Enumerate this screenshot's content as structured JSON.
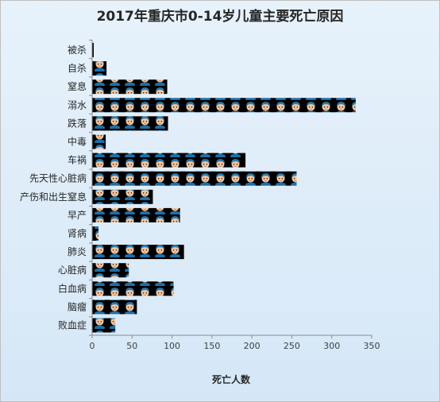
{
  "chart_data": {
    "type": "bar",
    "orientation": "horizontal",
    "title": "2017年重庆市0-14岁儿童主要死亡原因",
    "xlabel": "死亡人数",
    "ylabel": "",
    "categories": [
      "被杀",
      "自杀",
      "窒息",
      "溺水",
      "跌落",
      "中毒",
      "车祸",
      "先天性心脏病",
      "产伤和出生窒息",
      "早产",
      "肾病",
      "肺炎",
      "心脏病",
      "白血病",
      "脑瘤",
      "败血症"
    ],
    "values": [
      2,
      18,
      94,
      330,
      95,
      17,
      192,
      256,
      76,
      110,
      8,
      115,
      46,
      102,
      56,
      29
    ],
    "xlim": [
      0,
      350
    ],
    "xticks": [
      "0",
      "50",
      "100",
      "150",
      "200",
      "250",
      "300",
      "350"
    ],
    "grid": false,
    "legend": "none",
    "bar_fill": "pictograph",
    "pictograph_unit": 19,
    "colors": {
      "bar": "#000000",
      "face": "#f2c59e",
      "hair": "#2e78a8",
      "shirt": "#1c6fa8",
      "background_top": "#e7f2fb",
      "background_bottom": "#d5e7f7"
    }
  }
}
